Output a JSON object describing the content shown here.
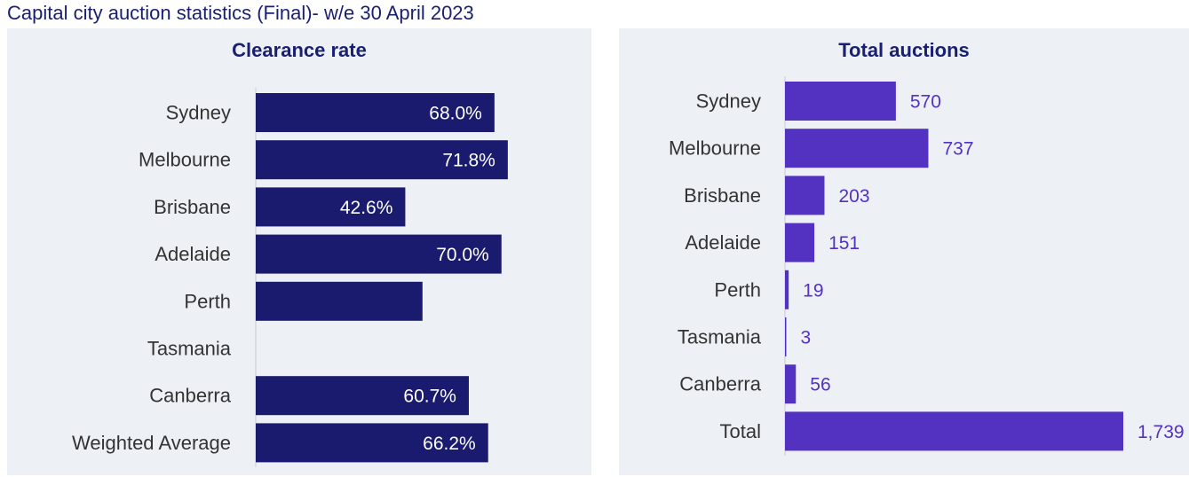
{
  "page": {
    "title": "Capital city auction statistics (Final)- w/e 30 April 2023"
  },
  "colors": {
    "clearance_bar": "#1a1a6e",
    "auctions_bar": "#5332c1",
    "panel_bg": "#edf1f5",
    "axis": "#d6d6de"
  },
  "chart_data": [
    {
      "type": "bar",
      "orientation": "horizontal",
      "title": "Clearance rate",
      "categories": [
        "Sydney",
        "Melbourne",
        "Brisbane",
        "Adelaide",
        "Perth",
        "Tasmania",
        "Canberra",
        "Weighted Average"
      ],
      "values": [
        68.0,
        71.8,
        42.6,
        70.0,
        47.5,
        null,
        60.7,
        66.2
      ],
      "labels": [
        "68.0%",
        "71.8%",
        "42.6%",
        "70.0%",
        "",
        "",
        "60.7%",
        "66.2%"
      ],
      "xlim": [
        0,
        86
      ],
      "grid": false,
      "legend": "none"
    },
    {
      "type": "bar",
      "orientation": "horizontal",
      "title": "Total auctions",
      "categories": [
        "Sydney",
        "Melbourne",
        "Brisbane",
        "Adelaide",
        "Perth",
        "Tasmania",
        "Canberra",
        "Total"
      ],
      "values": [
        570,
        737,
        203,
        151,
        19,
        3,
        56,
        1739
      ],
      "labels": [
        "570",
        "737",
        "203",
        "151",
        "19",
        "3",
        "56",
        "1,739"
      ],
      "xlim": [
        0,
        1739
      ],
      "grid": false,
      "legend": "none"
    }
  ]
}
